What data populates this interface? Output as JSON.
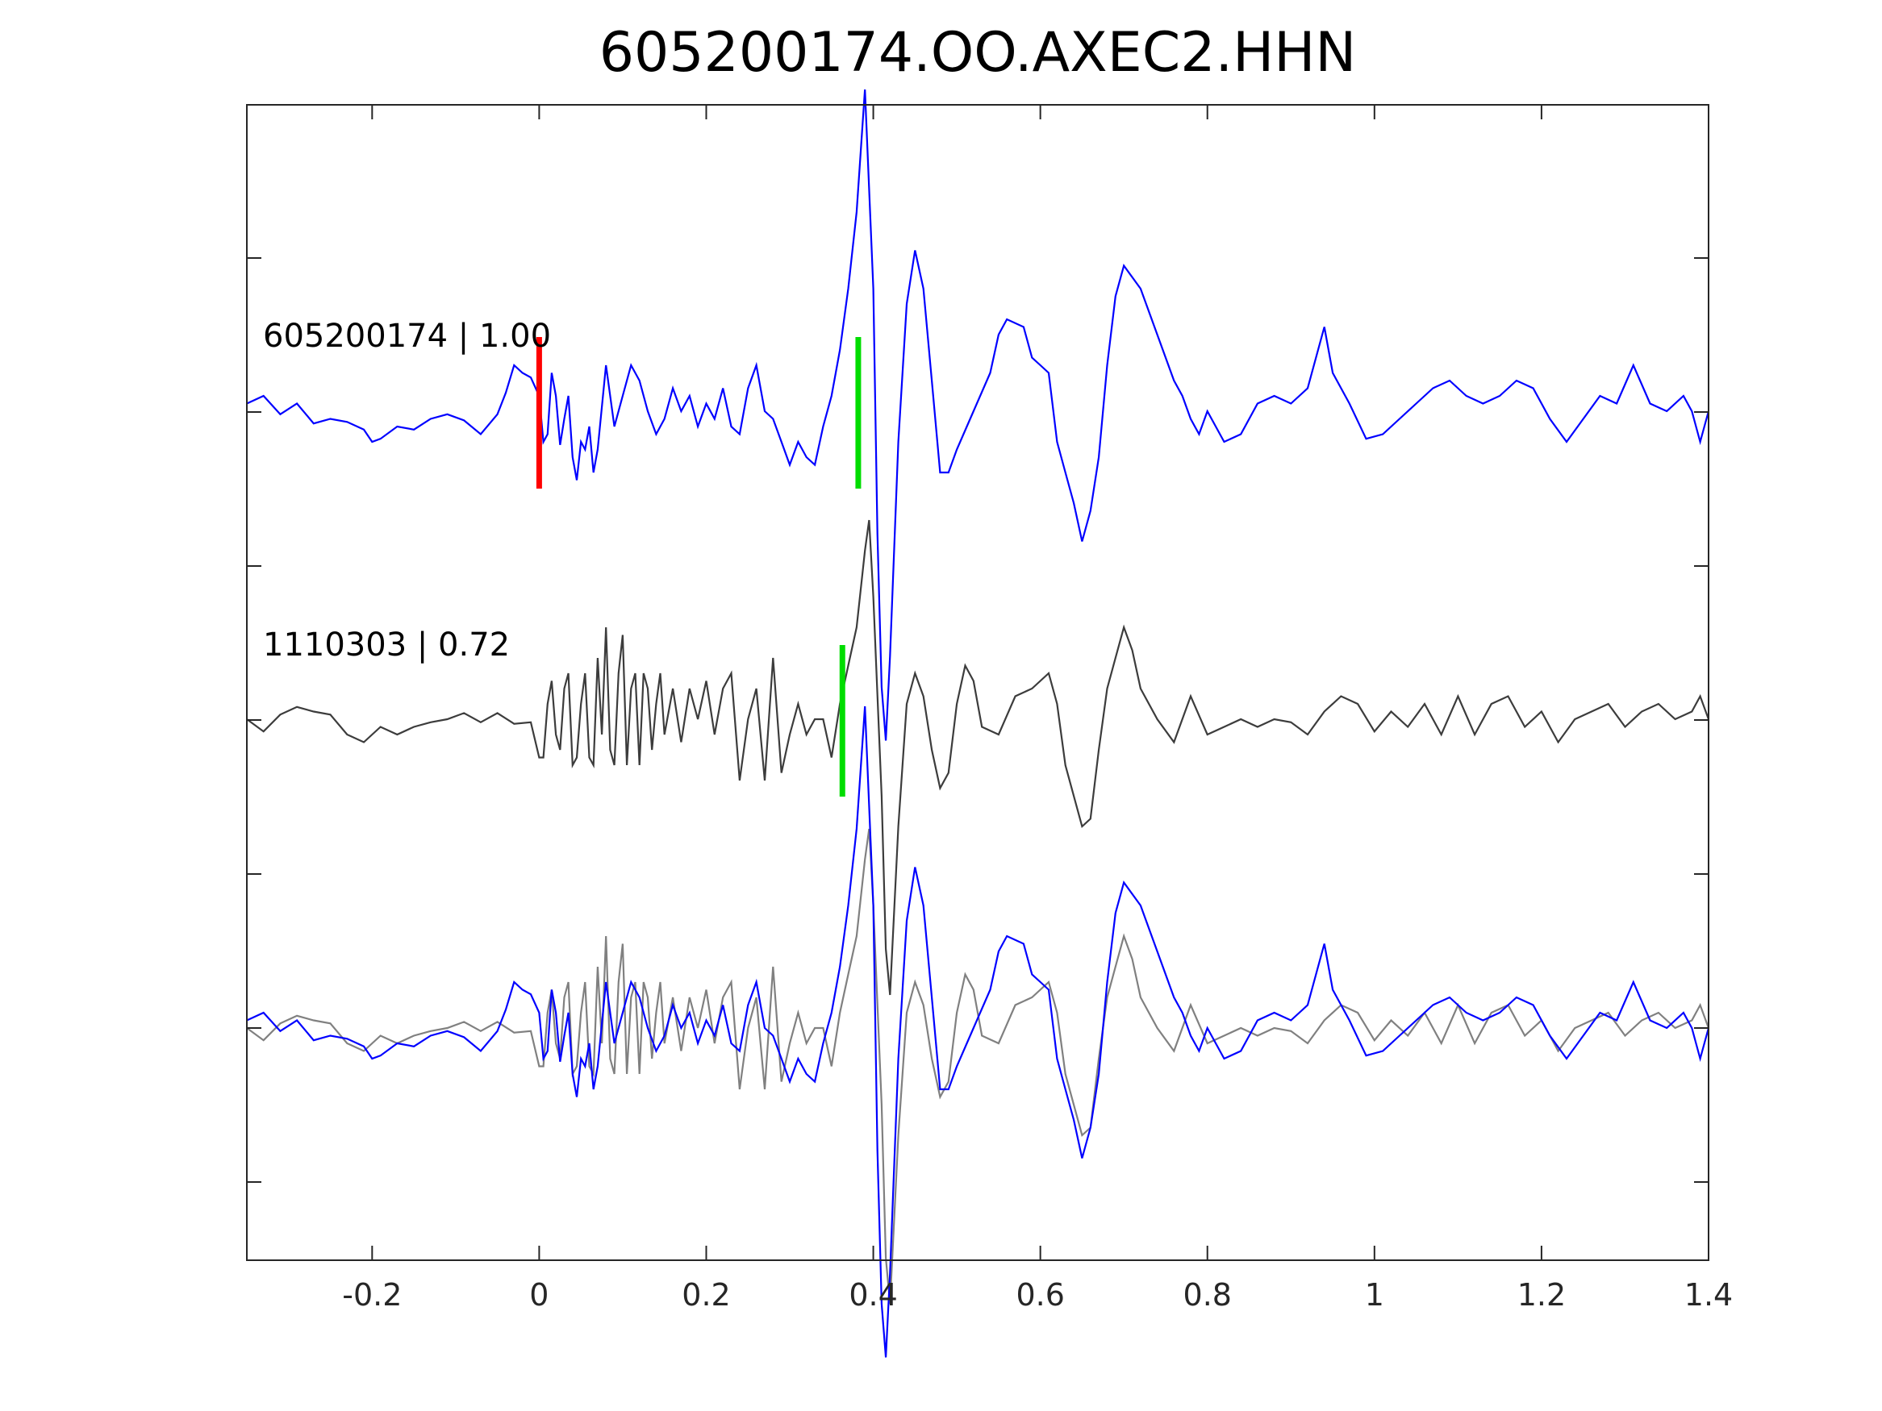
{
  "chart_data": {
    "type": "line",
    "title": "605200174.OO.AXEC2.HHN",
    "xlabel": "",
    "ylabel": "",
    "xlim": [
      -0.35,
      1.4
    ],
    "xticks": [
      -0.2,
      0,
      0.2,
      0.4,
      0.6,
      0.8,
      1,
      1.2,
      1.4
    ],
    "xtick_labels": [
      "-0.2",
      "0",
      "0.2",
      "0.4",
      "0.6",
      "0.8",
      "1",
      "1.2",
      "1.4"
    ],
    "ytick_count": 7,
    "grid": false,
    "colors": {
      "template": "#0000ff",
      "candidate": "#3c3c3c",
      "overlay_gray": "#808080",
      "p_pick": "#ff0000",
      "s_pick": "#00dd00"
    },
    "traces": [
      {
        "name": "605200174 | 1.00",
        "label": "605200174 | 1.00",
        "lane": 0,
        "color": "#0000ff"
      },
      {
        "name": "1110303 | 0.72",
        "label": "1110303 | 0.72",
        "lane": 1,
        "color": "#3c3c3c"
      },
      {
        "name": "overlay",
        "label": "",
        "lane": 2
      }
    ],
    "picks": [
      {
        "phase": "P",
        "x": 0.0,
        "lane": 0,
        "color": "#ff0000"
      },
      {
        "phase": "S",
        "x": 0.382,
        "lane": 0,
        "color": "#00dd00"
      },
      {
        "phase": "S",
        "x": 0.363,
        "lane": 1,
        "color": "#00dd00"
      }
    ],
    "waveforms": {
      "template": [
        [
          -0.35,
          0.05
        ],
        [
          -0.33,
          0.1
        ],
        [
          -0.31,
          -0.02
        ],
        [
          -0.29,
          0.05
        ],
        [
          -0.27,
          -0.08
        ],
        [
          -0.25,
          -0.05
        ],
        [
          -0.23,
          -0.07
        ],
        [
          -0.21,
          -0.12
        ],
        [
          -0.2,
          -0.2
        ],
        [
          -0.19,
          -0.18
        ],
        [
          -0.17,
          -0.1
        ],
        [
          -0.15,
          -0.12
        ],
        [
          -0.13,
          -0.05
        ],
        [
          -0.11,
          -0.02
        ],
        [
          -0.09,
          -0.06
        ],
        [
          -0.07,
          -0.15
        ],
        [
          -0.05,
          -0.02
        ],
        [
          -0.04,
          0.12
        ],
        [
          -0.03,
          0.3
        ],
        [
          -0.02,
          0.25
        ],
        [
          -0.01,
          0.22
        ],
        [
          0.0,
          0.1
        ],
        [
          0.005,
          -0.2
        ],
        [
          0.01,
          -0.15
        ],
        [
          0.015,
          0.25
        ],
        [
          0.02,
          0.1
        ],
        [
          0.025,
          -0.22
        ],
        [
          0.03,
          -0.05
        ],
        [
          0.035,
          0.1
        ],
        [
          0.04,
          -0.3
        ],
        [
          0.045,
          -0.45
        ],
        [
          0.05,
          -0.2
        ],
        [
          0.055,
          -0.25
        ],
        [
          0.06,
          -0.1
        ],
        [
          0.065,
          -0.4
        ],
        [
          0.07,
          -0.25
        ],
        [
          0.08,
          0.3
        ],
        [
          0.09,
          -0.1
        ],
        [
          0.1,
          0.1
        ],
        [
          0.11,
          0.3
        ],
        [
          0.12,
          0.2
        ],
        [
          0.13,
          0.0
        ],
        [
          0.14,
          -0.15
        ],
        [
          0.15,
          -0.05
        ],
        [
          0.16,
          0.15
        ],
        [
          0.17,
          0.0
        ],
        [
          0.18,
          0.1
        ],
        [
          0.19,
          -0.1
        ],
        [
          0.2,
          0.05
        ],
        [
          0.21,
          -0.05
        ],
        [
          0.22,
          0.15
        ],
        [
          0.23,
          -0.1
        ],
        [
          0.24,
          -0.15
        ],
        [
          0.25,
          0.15
        ],
        [
          0.26,
          0.3
        ],
        [
          0.27,
          0.0
        ],
        [
          0.28,
          -0.05
        ],
        [
          0.29,
          -0.2
        ],
        [
          0.3,
          -0.35
        ],
        [
          0.31,
          -0.2
        ],
        [
          0.32,
          -0.3
        ],
        [
          0.33,
          -0.35
        ],
        [
          0.34,
          -0.1
        ],
        [
          0.35,
          0.1
        ],
        [
          0.36,
          0.4
        ],
        [
          0.37,
          0.8
        ],
        [
          0.38,
          1.3
        ],
        [
          0.39,
          2.1
        ],
        [
          0.4,
          0.8
        ],
        [
          0.405,
          -0.8
        ],
        [
          0.41,
          -1.8
        ],
        [
          0.415,
          -2.15
        ],
        [
          0.42,
          -1.6
        ],
        [
          0.43,
          -0.2
        ],
        [
          0.44,
          0.7
        ],
        [
          0.45,
          1.05
        ],
        [
          0.46,
          0.8
        ],
        [
          0.47,
          0.2
        ],
        [
          0.48,
          -0.4
        ],
        [
          0.49,
          -0.4
        ],
        [
          0.5,
          -0.25
        ],
        [
          0.52,
          0.0
        ],
        [
          0.54,
          0.25
        ],
        [
          0.55,
          0.5
        ],
        [
          0.56,
          0.6
        ],
        [
          0.58,
          0.55
        ],
        [
          0.59,
          0.35
        ],
        [
          0.6,
          0.3
        ],
        [
          0.61,
          0.25
        ],
        [
          0.62,
          -0.2
        ],
        [
          0.63,
          -0.4
        ],
        [
          0.64,
          -0.6
        ],
        [
          0.65,
          -0.85
        ],
        [
          0.66,
          -0.65
        ],
        [
          0.67,
          -0.3
        ],
        [
          0.68,
          0.3
        ],
        [
          0.69,
          0.75
        ],
        [
          0.7,
          0.95
        ],
        [
          0.72,
          0.8
        ],
        [
          0.74,
          0.5
        ],
        [
          0.76,
          0.2
        ],
        [
          0.77,
          0.1
        ],
        [
          0.78,
          -0.05
        ],
        [
          0.79,
          -0.15
        ],
        [
          0.8,
          0.0
        ],
        [
          0.82,
          -0.2
        ],
        [
          0.84,
          -0.15
        ],
        [
          0.86,
          0.05
        ],
        [
          0.88,
          0.1
        ],
        [
          0.9,
          0.05
        ],
        [
          0.92,
          0.15
        ],
        [
          0.94,
          0.55
        ],
        [
          0.95,
          0.25
        ],
        [
          0.97,
          0.05
        ],
        [
          0.99,
          -0.18
        ],
        [
          1.01,
          -0.15
        ],
        [
          1.03,
          -0.05
        ],
        [
          1.05,
          0.05
        ],
        [
          1.07,
          0.15
        ],
        [
          1.09,
          0.2
        ],
        [
          1.11,
          0.1
        ],
        [
          1.13,
          0.05
        ],
        [
          1.15,
          0.1
        ],
        [
          1.17,
          0.2
        ],
        [
          1.19,
          0.15
        ],
        [
          1.21,
          -0.05
        ],
        [
          1.23,
          -0.2
        ],
        [
          1.25,
          -0.05
        ],
        [
          1.27,
          0.1
        ],
        [
          1.29,
          0.05
        ],
        [
          1.31,
          0.3
        ],
        [
          1.33,
          0.05
        ],
        [
          1.35,
          0.0
        ],
        [
          1.37,
          0.1
        ],
        [
          1.38,
          0.0
        ],
        [
          1.39,
          -0.2
        ],
        [
          1.4,
          0.0
        ]
      ],
      "candidate": [
        [
          -0.35,
          0.0
        ],
        [
          -0.33,
          -0.08
        ],
        [
          -0.31,
          0.03
        ],
        [
          -0.29,
          0.08
        ],
        [
          -0.27,
          0.05
        ],
        [
          -0.25,
          0.03
        ],
        [
          -0.23,
          -0.1
        ],
        [
          -0.21,
          -0.15
        ],
        [
          -0.19,
          -0.05
        ],
        [
          -0.17,
          -0.1
        ],
        [
          -0.15,
          -0.05
        ],
        [
          -0.13,
          -0.02
        ],
        [
          -0.11,
          0.0
        ],
        [
          -0.09,
          0.04
        ],
        [
          -0.07,
          -0.02
        ],
        [
          -0.05,
          0.04
        ],
        [
          -0.03,
          -0.03
        ],
        [
          -0.01,
          -0.02
        ],
        [
          0.0,
          -0.25
        ],
        [
          0.005,
          -0.25
        ],
        [
          0.01,
          0.1
        ],
        [
          0.015,
          0.25
        ],
        [
          0.02,
          -0.1
        ],
        [
          0.025,
          -0.2
        ],
        [
          0.03,
          0.2
        ],
        [
          0.035,
          0.3
        ],
        [
          0.04,
          -0.3
        ],
        [
          0.045,
          -0.25
        ],
        [
          0.05,
          0.1
        ],
        [
          0.055,
          0.3
        ],
        [
          0.06,
          -0.25
        ],
        [
          0.065,
          -0.3
        ],
        [
          0.07,
          0.4
        ],
        [
          0.075,
          -0.1
        ],
        [
          0.08,
          0.6
        ],
        [
          0.085,
          -0.2
        ],
        [
          0.09,
          -0.3
        ],
        [
          0.095,
          0.3
        ],
        [
          0.1,
          0.55
        ],
        [
          0.105,
          -0.3
        ],
        [
          0.11,
          0.2
        ],
        [
          0.115,
          0.3
        ],
        [
          0.12,
          -0.3
        ],
        [
          0.125,
          0.3
        ],
        [
          0.13,
          0.2
        ],
        [
          0.135,
          -0.2
        ],
        [
          0.14,
          0.1
        ],
        [
          0.145,
          0.3
        ],
        [
          0.15,
          -0.1
        ],
        [
          0.16,
          0.2
        ],
        [
          0.17,
          -0.15
        ],
        [
          0.18,
          0.2
        ],
        [
          0.19,
          0.0
        ],
        [
          0.2,
          0.25
        ],
        [
          0.21,
          -0.1
        ],
        [
          0.22,
          0.2
        ],
        [
          0.23,
          0.3
        ],
        [
          0.24,
          -0.4
        ],
        [
          0.25,
          0.0
        ],
        [
          0.26,
          0.2
        ],
        [
          0.27,
          -0.4
        ],
        [
          0.28,
          0.4
        ],
        [
          0.29,
          -0.35
        ],
        [
          0.3,
          -0.1
        ],
        [
          0.31,
          0.1
        ],
        [
          0.32,
          -0.1
        ],
        [
          0.33,
          0.0
        ],
        [
          0.34,
          0.0
        ],
        [
          0.35,
          -0.25
        ],
        [
          0.36,
          0.1
        ],
        [
          0.37,
          0.35
        ],
        [
          0.38,
          0.6
        ],
        [
          0.39,
          1.1
        ],
        [
          0.395,
          1.3
        ],
        [
          0.4,
          0.8
        ],
        [
          0.41,
          -0.5
        ],
        [
          0.415,
          -1.5
        ],
        [
          0.42,
          -1.8
        ],
        [
          0.43,
          -0.7
        ],
        [
          0.44,
          0.1
        ],
        [
          0.45,
          0.3
        ],
        [
          0.46,
          0.15
        ],
        [
          0.47,
          -0.2
        ],
        [
          0.48,
          -0.45
        ],
        [
          0.49,
          -0.35
        ],
        [
          0.5,
          0.1
        ],
        [
          0.51,
          0.35
        ],
        [
          0.52,
          0.25
        ],
        [
          0.53,
          -0.05
        ],
        [
          0.55,
          -0.1
        ],
        [
          0.57,
          0.15
        ],
        [
          0.59,
          0.2
        ],
        [
          0.61,
          0.3
        ],
        [
          0.62,
          0.1
        ],
        [
          0.63,
          -0.3
        ],
        [
          0.65,
          -0.7
        ],
        [
          0.66,
          -0.65
        ],
        [
          0.67,
          -0.2
        ],
        [
          0.68,
          0.2
        ],
        [
          0.69,
          0.4
        ],
        [
          0.7,
          0.6
        ],
        [
          0.71,
          0.45
        ],
        [
          0.72,
          0.2
        ],
        [
          0.74,
          0.0
        ],
        [
          0.76,
          -0.15
        ],
        [
          0.78,
          0.15
        ],
        [
          0.8,
          -0.1
        ],
        [
          0.82,
          -0.05
        ],
        [
          0.84,
          0.0
        ],
        [
          0.86,
          -0.05
        ],
        [
          0.88,
          0.0
        ],
        [
          0.9,
          -0.02
        ],
        [
          0.92,
          -0.1
        ],
        [
          0.94,
          0.05
        ],
        [
          0.96,
          0.15
        ],
        [
          0.98,
          0.1
        ],
        [
          1.0,
          -0.08
        ],
        [
          1.02,
          0.05
        ],
        [
          1.04,
          -0.05
        ],
        [
          1.06,
          0.1
        ],
        [
          1.08,
          -0.1
        ],
        [
          1.1,
          0.15
        ],
        [
          1.12,
          -0.1
        ],
        [
          1.14,
          0.1
        ],
        [
          1.16,
          0.15
        ],
        [
          1.18,
          -0.05
        ],
        [
          1.2,
          0.05
        ],
        [
          1.22,
          -0.15
        ],
        [
          1.24,
          0.0
        ],
        [
          1.26,
          0.05
        ],
        [
          1.28,
          0.1
        ],
        [
          1.3,
          -0.05
        ],
        [
          1.32,
          0.05
        ],
        [
          1.34,
          0.1
        ],
        [
          1.36,
          0.0
        ],
        [
          1.38,
          0.05
        ],
        [
          1.39,
          0.15
        ],
        [
          1.4,
          0.0
        ]
      ]
    }
  }
}
